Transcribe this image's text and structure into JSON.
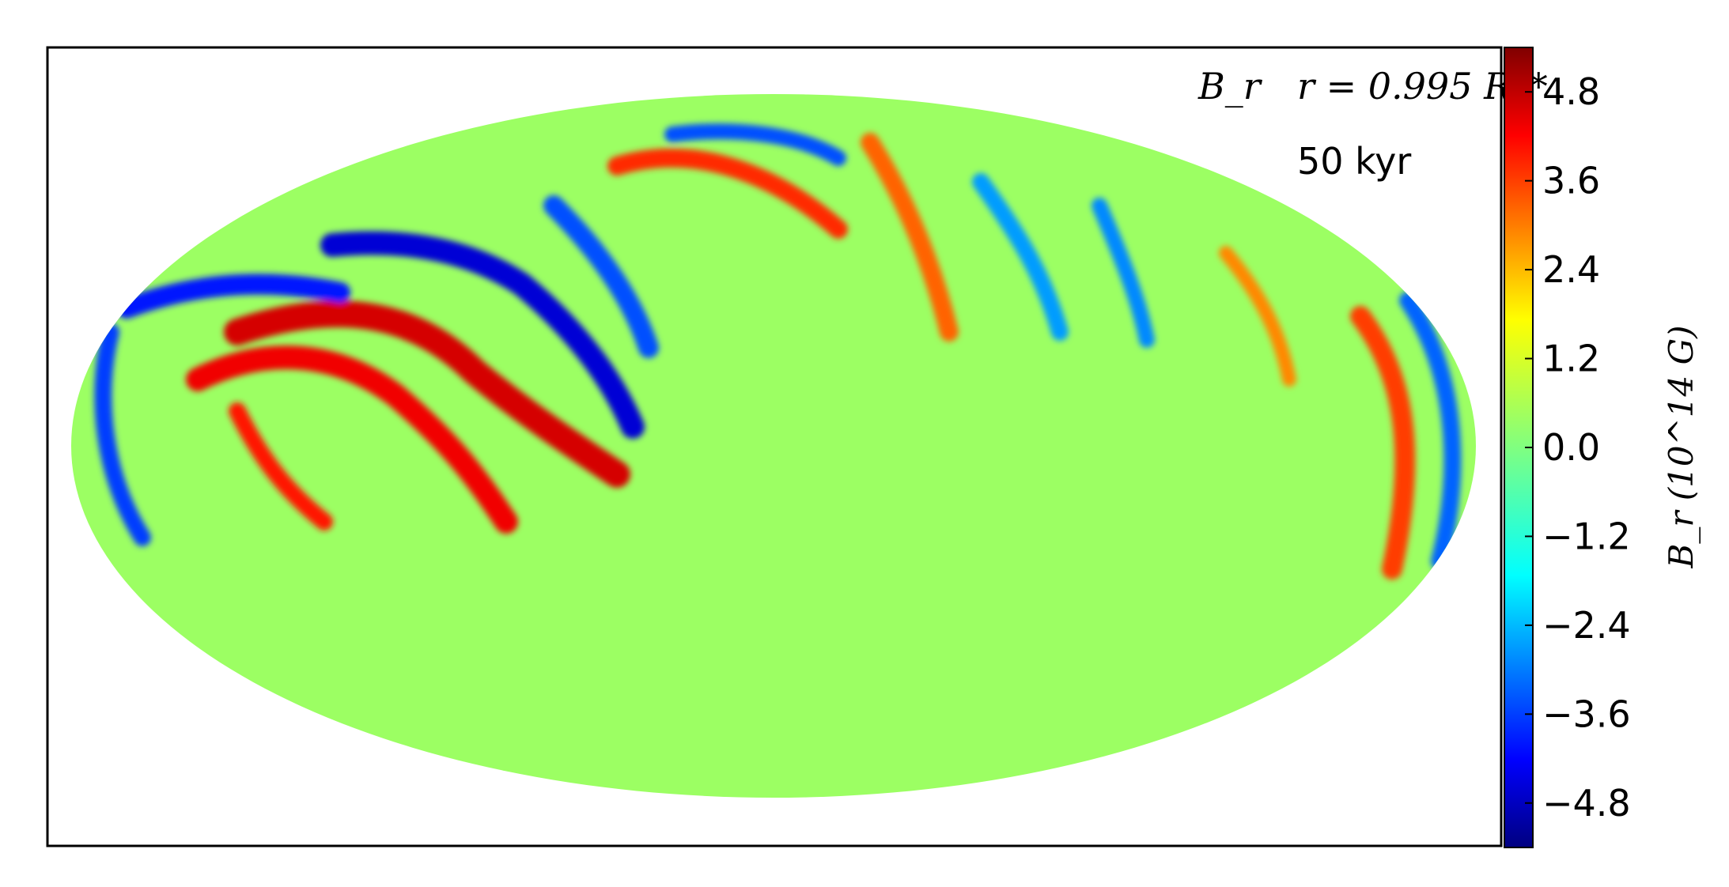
{
  "chart_data": {
    "type": "heatmap",
    "projection": "Mollweide",
    "field_label": "B_r",
    "radius_label": "r = 0.995 R_*",
    "time_label": "50 kyr",
    "colormap": "jet",
    "colorbar": {
      "label": "B_r (10^14 G)",
      "vmin": -5.4,
      "vmax": 5.4,
      "ticks": [
        4.8,
        3.6,
        2.4,
        1.2,
        0.0,
        -1.2,
        -2.4,
        -3.6,
        -4.8
      ],
      "tick_labels": [
        "4.8",
        "3.6",
        "2.4",
        "1.2",
        "0.0",
        "−1.2",
        "−2.4",
        "−3.6",
        "−4.8"
      ]
    },
    "features": [
      {
        "kind": "positive-band",
        "value": 4.5
      },
      {
        "kind": "negative-band",
        "value": -4.5
      },
      {
        "kind": "positive-band",
        "value": 4.2
      },
      {
        "kind": "negative-band",
        "value": -3.8
      },
      {
        "kind": "positive-band",
        "value": 3.6
      },
      {
        "kind": "negative-band",
        "value": -3.2
      },
      {
        "kind": "positive-band",
        "value": 3.0
      },
      {
        "kind": "negative-band",
        "value": -2.4
      },
      {
        "kind": "background",
        "value": 0.3
      }
    ]
  },
  "colors": {
    "background_field": "#a6ff7a",
    "frame": "#000000"
  }
}
